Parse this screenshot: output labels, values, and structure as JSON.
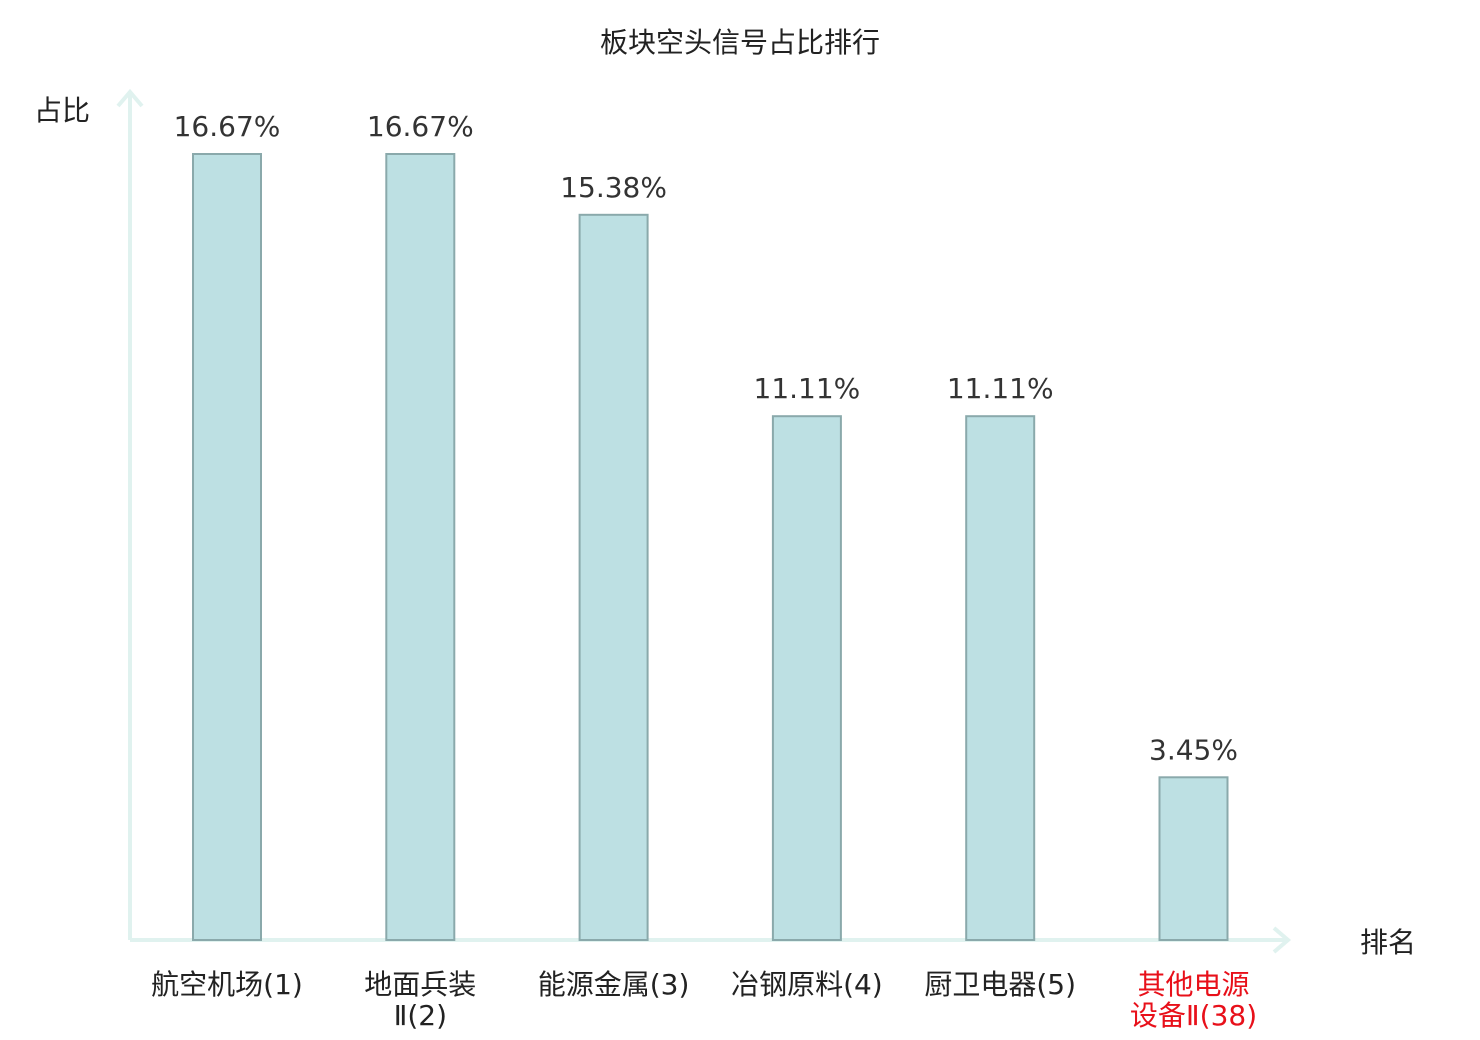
{
  "chart_data": {
    "type": "bar",
    "title": "板块空头信号占比排行",
    "xlabel": "排名",
    "ylabel": "占比",
    "categories": [
      [
        "航空机场(1)"
      ],
      [
        "地面兵装",
        "Ⅱ(2)"
      ],
      [
        "能源金属(3)"
      ],
      [
        "冶钢原料(4)"
      ],
      [
        "厨卫电器(5)"
      ],
      [
        "其他电源",
        "设备Ⅱ(38)"
      ]
    ],
    "values": [
      16.67,
      16.67,
      15.38,
      11.11,
      11.11,
      3.45
    ],
    "value_labels": [
      "16.67%",
      "16.67%",
      "15.38%",
      "11.11%",
      "11.11%",
      "3.45%"
    ],
    "highlight_index": 5,
    "ylim": [
      0,
      16.67
    ],
    "grid": false,
    "legend": "none",
    "colors": {
      "bar_fill": "#bde0e3",
      "bar_stroke": "#8aa9ab",
      "axis": "#e0f2ef",
      "label": "#222222",
      "value_text": "#333333",
      "highlight": "#e8101a"
    }
  }
}
